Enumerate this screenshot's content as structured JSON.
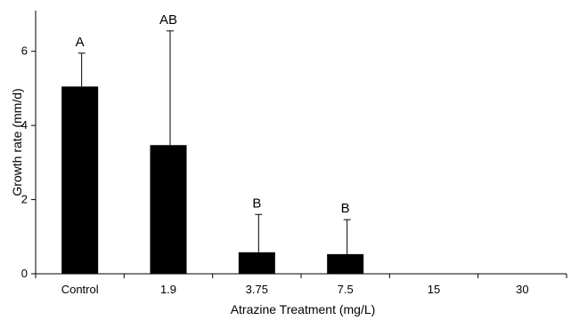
{
  "chart_data": {
    "type": "bar",
    "xlabel": "Atrazine Treatment (mg/L)",
    "ylabel": "Growth rate (mm/d)",
    "categories": [
      "Control",
      "1.9",
      "3.75",
      "7.5",
      "15",
      "30"
    ],
    "values": [
      5.05,
      3.47,
      0.58,
      0.53,
      0,
      0
    ],
    "error_upper": [
      0.9,
      3.08,
      1.02,
      0.93,
      0,
      0
    ],
    "significance_labels": [
      "A",
      "AB",
      "B",
      "B",
      "",
      ""
    ],
    "ylim": [
      0,
      7
    ],
    "yticks": [
      0,
      2,
      4,
      6
    ],
    "grid": false,
    "bar_color": "#000000"
  }
}
